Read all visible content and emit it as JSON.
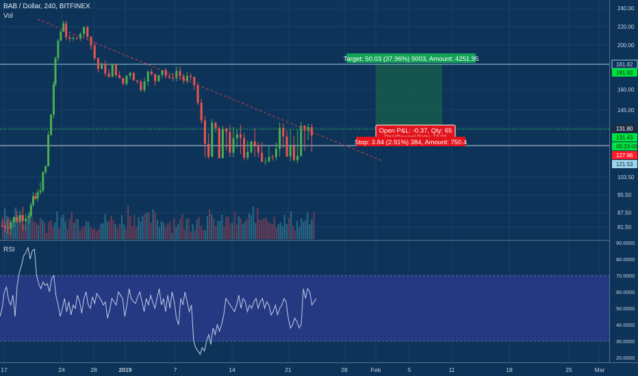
{
  "header": {
    "symbol_line": "BAB / Dollar, 240, BITFINEX",
    "volume_label": "Vol",
    "rsi_label": "RSI"
  },
  "colors": {
    "background": "#0d3458",
    "up": "#26a69a",
    "up_candle": "#4caf50",
    "down": "#ef5350",
    "rsi_band": "#2a3a8a",
    "rsi_line": "#b7c4e0",
    "target_zone": "#17594d",
    "stop_zone": "#5a2233",
    "target_label": "#12a157",
    "stop_label": "#e3131b",
    "level_green": "#00e33f",
    "level_red": "#ff1b2a"
  },
  "price_axis": {
    "ticks": [
      "240.00",
      "220.00",
      "200.00",
      "181.82",
      "160.00",
      "145.00",
      "131.80",
      "103.50",
      "95.50",
      "87.50",
      "81.50"
    ],
    "badges": [
      {
        "label": "181.82",
        "kind": "outline"
      },
      {
        "label": "181.83",
        "kind": "green"
      },
      {
        "label": "131.80",
        "kind": "dark"
      },
      {
        "label": "131.43",
        "kind": "green"
      },
      {
        "label": "00:23:00",
        "kind": "green"
      },
      {
        "label": "127.96",
        "kind": "red"
      },
      {
        "label": "121.53",
        "kind": "lightblue"
      }
    ]
  },
  "rsi_axis": {
    "ticks": [
      "90.0000",
      "80.0000",
      "70.0000",
      "60.0000",
      "50.0000",
      "40.0000",
      "30.0000",
      "20.0000"
    ]
  },
  "time_axis": {
    "ticks": [
      "17",
      "24",
      "28",
      "2019",
      "7",
      "14",
      "21",
      "28",
      "Feb",
      "5",
      "11",
      "18",
      "25",
      "Mar"
    ]
  },
  "position": {
    "target_text": "Target: 50.03 (37.96%) 5003, Amount: 4251.95",
    "open_pl_text": "Open P&L: -0.37, Qty: 65",
    "risk_reward_text": "Risk/Reward Ratio: 13.03",
    "stop_text": "Stop: 3.84 (2.91%) 384, Amount: 750.4",
    "entry": 131.8,
    "target": 181.82,
    "stop": 127.96
  },
  "chart_data": {
    "type": "candlestick",
    "symbol": "BAB / Dollar",
    "timeframe": "240",
    "exchange": "BITFINEX",
    "price_range": [
      78,
      244
    ],
    "close_points": [
      [
        0,
        82
      ],
      [
        1,
        84
      ],
      [
        2,
        86
      ],
      [
        3,
        88
      ],
      [
        3.5,
        92
      ],
      [
        4,
        95
      ],
      [
        4.3,
        100
      ],
      [
        4.6,
        108
      ],
      [
        4.9,
        118
      ],
      [
        5.2,
        130
      ],
      [
        5.5,
        142
      ],
      [
        5.8,
        165
      ],
      [
        6,
        185
      ],
      [
        6.3,
        205
      ],
      [
        6.6,
        215
      ],
      [
        6.9,
        225
      ],
      [
        7.2,
        210
      ],
      [
        7.6,
        204
      ],
      [
        8,
        206
      ],
      [
        8.4,
        210
      ],
      [
        8.8,
        214
      ],
      [
        9.2,
        218
      ],
      [
        9.6,
        212
      ],
      [
        10,
        200
      ],
      [
        10.4,
        188
      ],
      [
        10.8,
        178
      ],
      [
        11.2,
        180
      ],
      [
        11.6,
        176
      ],
      [
        12,
        170
      ],
      [
        12.4,
        180
      ],
      [
        12.8,
        175
      ],
      [
        13.2,
        168
      ],
      [
        13.6,
        165
      ],
      [
        14,
        172
      ],
      [
        14.4,
        176
      ],
      [
        14.8,
        170
      ],
      [
        15.2,
        166
      ],
      [
        15.6,
        162
      ],
      [
        16,
        170
      ],
      [
        16.4,
        174
      ],
      [
        16.8,
        172
      ],
      [
        17.2,
        168
      ],
      [
        17.6,
        175
      ],
      [
        18,
        178
      ],
      [
        18.4,
        172
      ],
      [
        18.8,
        168
      ],
      [
        19.2,
        172
      ],
      [
        19.6,
        176
      ],
      [
        20,
        172
      ],
      [
        20.4,
        168
      ],
      [
        20.8,
        170
      ],
      [
        21.2,
        168
      ],
      [
        21.6,
        164
      ],
      [
        22,
        150
      ],
      [
        22.4,
        136
      ],
      [
        22.8,
        130
      ],
      [
        23.2,
        130
      ],
      [
        23.6,
        133
      ],
      [
        24,
        131
      ],
      [
        24.4,
        126
      ],
      [
        24.8,
        129
      ],
      [
        25.2,
        132
      ],
      [
        25.6,
        130
      ],
      [
        26,
        128
      ],
      [
        26.4,
        129
      ],
      [
        26.8,
        131
      ],
      [
        27.2,
        129
      ],
      [
        27.6,
        130
      ],
      [
        28,
        131
      ],
      [
        28.4,
        128
      ],
      [
        28.8,
        126
      ],
      [
        29.2,
        125
      ],
      [
        29.6,
        126
      ],
      [
        30,
        130
      ],
      [
        30.4,
        128
      ],
      [
        30.8,
        129
      ],
      [
        31.2,
        130
      ],
      [
        31.6,
        128
      ],
      [
        32,
        130
      ],
      [
        32.4,
        128
      ],
      [
        32.8,
        126
      ],
      [
        33.2,
        130
      ],
      [
        33.6,
        132
      ],
      [
        34,
        131
      ],
      [
        34.4,
        130
      ],
      [
        34.8,
        131.8
      ]
    ],
    "volume_relative": [
      0.7,
      0.5,
      0.4,
      0.3,
      0.35,
      0.45,
      0.6,
      0.5,
      0.3,
      0.2,
      0.25,
      0.3,
      0.4,
      0.3,
      0.35,
      0.2,
      0.15,
      0.25,
      0.3,
      0.2,
      0.15,
      0.1,
      0.2,
      0.15,
      0.3,
      0.2,
      0.25,
      0.15,
      0.1,
      0.2,
      0.15,
      0.25,
      0.2,
      0.5,
      0.3,
      0.2,
      0.15,
      0.2,
      0.25,
      0.35,
      0.2,
      0.15,
      0.3,
      0.2,
      0.15,
      0.1,
      0.2,
      0.25,
      0.15,
      0.2,
      0.3,
      0.25,
      0.2,
      0.15,
      0.1,
      0.2,
      0.15,
      0.25,
      0.3,
      0.2
    ],
    "rsi_range": [
      18,
      91
    ],
    "rsi_bands": [
      30,
      70
    ],
    "rsi_values": [
      45,
      50,
      60,
      63,
      55,
      52,
      58,
      45,
      64,
      72,
      76,
      82,
      84,
      87,
      80,
      85,
      86,
      70,
      65,
      62,
      66,
      64,
      65,
      60,
      68,
      70,
      58,
      52,
      45,
      50,
      56,
      48,
      54,
      46,
      52,
      50,
      58,
      54,
      47,
      56,
      60,
      52,
      50,
      57,
      53,
      59,
      57,
      55,
      52,
      54,
      44,
      49,
      56,
      54,
      52,
      60,
      58,
      56,
      45,
      52,
      62,
      56,
      54,
      53,
      57,
      60,
      54,
      48,
      56,
      52,
      58,
      54,
      50,
      56,
      62,
      52,
      56,
      48,
      58,
      50,
      60,
      54,
      44,
      40,
      56,
      52,
      60,
      54,
      48,
      52,
      30,
      26,
      24,
      22,
      26,
      24,
      30,
      34,
      28,
      38,
      34,
      40,
      36,
      40,
      46,
      56,
      54,
      52,
      50,
      48,
      52,
      58,
      50,
      56,
      54,
      48,
      52,
      50,
      54,
      56,
      50,
      54,
      56,
      50,
      54,
      52,
      46,
      48,
      52,
      46,
      50,
      52,
      56,
      54,
      44,
      38,
      40,
      44,
      42,
      38,
      40,
      62,
      56,
      62,
      60,
      52,
      54,
      56
    ]
  }
}
